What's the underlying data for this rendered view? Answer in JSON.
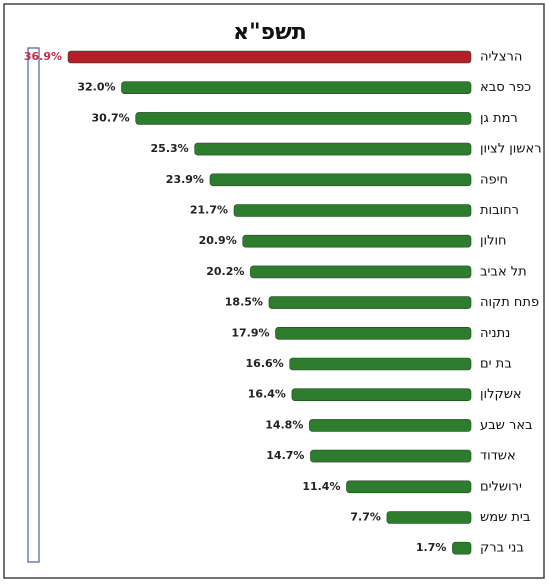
{
  "chart_data": {
    "type": "bar",
    "orientation": "horizontal",
    "title": "תשפ\"א",
    "categories": [
      "הרצליה",
      "כפר סבא",
      "רמת גן",
      "ראשון לציון",
      "חיפה",
      "רחובות",
      "חולון",
      "תל אביב",
      "פתח תקוה",
      "נתניה",
      "בת ים",
      "אשקלון",
      "באר שבע",
      "אשדוד",
      "ירושלים",
      "בית שמש",
      "בני ברק"
    ],
    "values": [
      36.9,
      32.0,
      30.7,
      25.3,
      23.9,
      21.7,
      20.9,
      20.2,
      18.5,
      17.9,
      16.6,
      16.4,
      14.8,
      14.7,
      11.4,
      7.7,
      1.7
    ],
    "value_labels": [
      "36.9%",
      "32.0%",
      "30.7%",
      "25.3%",
      "23.9%",
      "21.7%",
      "20.9%",
      "20.2%",
      "18.5%",
      "17.9%",
      "16.6%",
      "16.4%",
      "14.8%",
      "14.7%",
      "11.4%",
      "7.7%",
      "1.7%"
    ],
    "colors": [
      "#b3202a",
      "#2e7d2e",
      "#2e7d2e",
      "#2e7d2e",
      "#2e7d2e",
      "#2e7d2e",
      "#2e7d2e",
      "#2e7d2e",
      "#2e7d2e",
      "#2e7d2e",
      "#2e7d2e",
      "#2e7d2e",
      "#2e7d2e",
      "#2e7d2e",
      "#2e7d2e",
      "#2e7d2e",
      "#2e7d2e"
    ],
    "label_colors": [
      "#c0304a",
      "#222222",
      "#222222",
      "#222222",
      "#222222",
      "#222222",
      "#222222",
      "#222222",
      "#222222",
      "#222222",
      "#222222",
      "#222222",
      "#222222",
      "#222222",
      "#222222",
      "#222222",
      "#222222"
    ]
  }
}
